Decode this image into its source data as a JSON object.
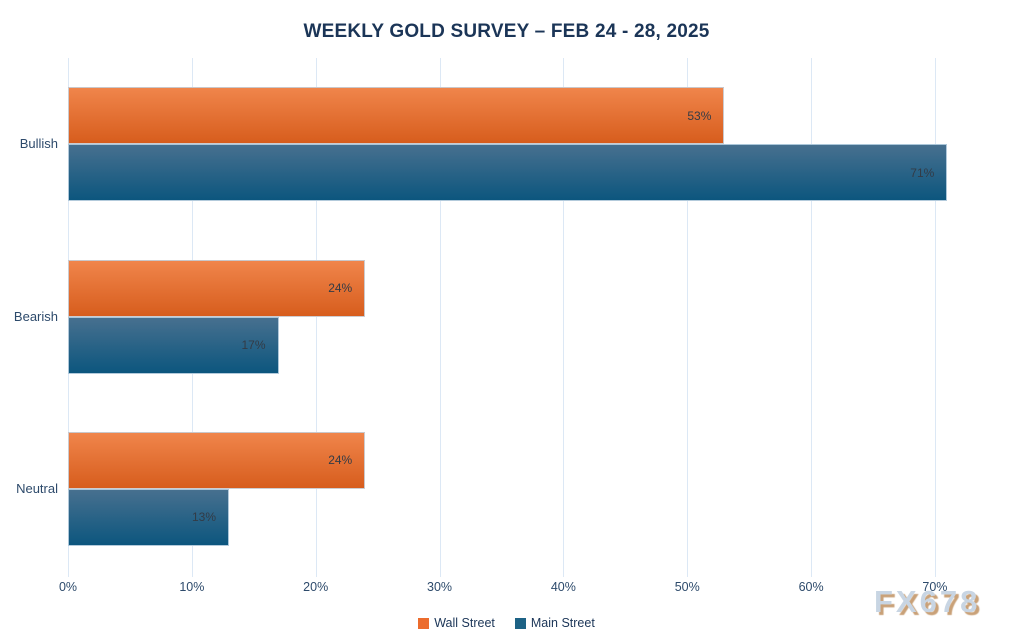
{
  "chart_data": {
    "type": "bar",
    "orientation": "horizontal",
    "title": "WEEKLY GOLD SURVEY – FEB 24 - 28, 2025",
    "categories": [
      "Bullish",
      "Bearish",
      "Neutral"
    ],
    "series": [
      {
        "name": "Wall Street",
        "values": [
          53,
          24,
          24
        ],
        "legend_color": "#ec6c2d",
        "gradient_top": "#f0854b",
        "gradient_bottom": "#d75d1d"
      },
      {
        "name": "Main Street",
        "values": [
          71,
          17,
          13
        ],
        "legend_color": "#1d6285",
        "gradient_top": "#47708f",
        "gradient_bottom": "#0c567e"
      }
    ],
    "value_suffix": "%",
    "axis": {
      "min": 0,
      "tick_values": [
        0,
        10,
        20,
        30,
        40,
        50,
        60,
        70
      ],
      "tick_labels": [
        "0%",
        "10%",
        "20%",
        "30%",
        "40%",
        "50%",
        "60%",
        "70%"
      ],
      "plot_max": 75.9
    },
    "grid": true,
    "legend_position": "bottom"
  },
  "watermark": {
    "text": "FX678"
  },
  "colors": {
    "background": "#ffffff",
    "title": "#1b3557",
    "axis_text": "#2d4a6b",
    "gridline": "#dce8f5",
    "data_label": "#333b46",
    "watermark": "#c8d5e3",
    "watermark_shadow": "#c9a178"
  }
}
